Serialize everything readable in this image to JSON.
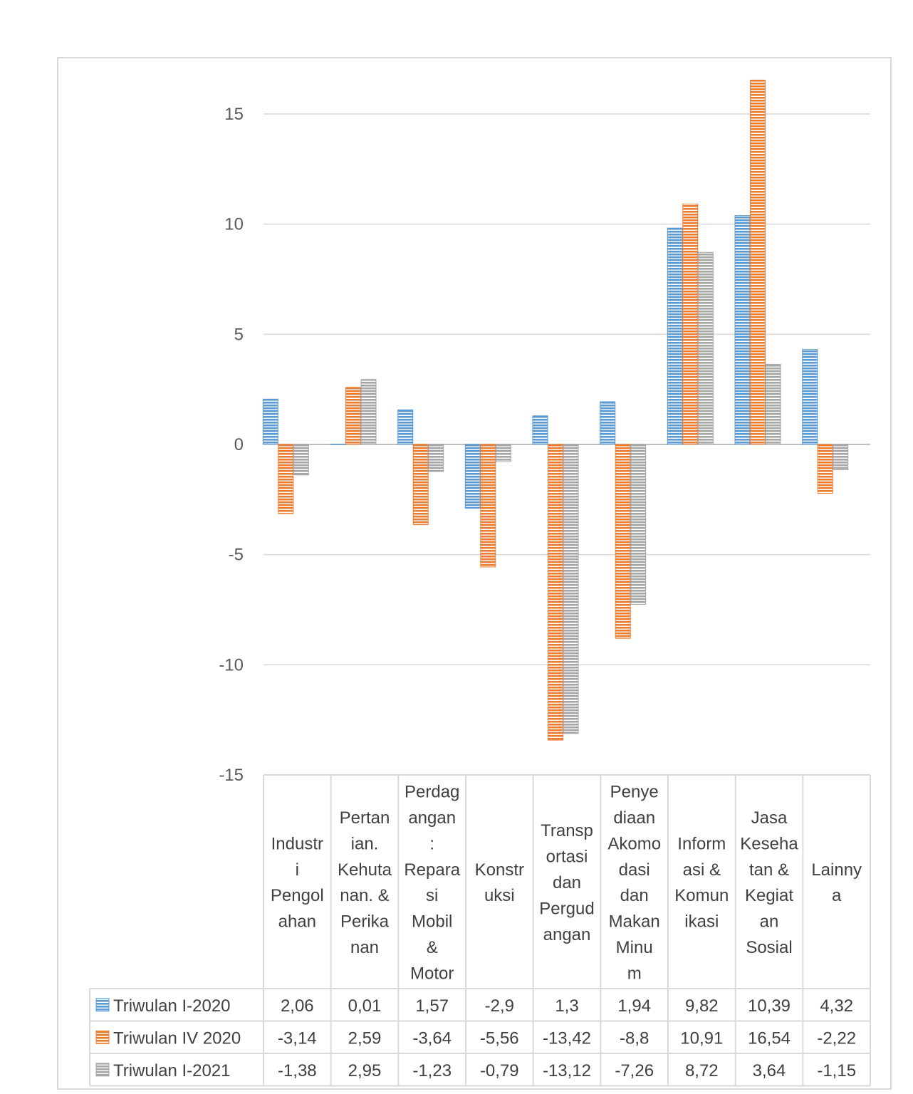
{
  "chart_data": {
    "type": "bar",
    "title": "",
    "xlabel": "",
    "ylabel": "",
    "ylim": [
      -15,
      15
    ],
    "yticks": [
      15,
      10,
      5,
      0,
      -5,
      -10,
      -15
    ],
    "ytick_labels": [
      "15",
      "10",
      "5",
      "0",
      "-5",
      "-10",
      "-15"
    ],
    "grid": true,
    "legend": "data-table",
    "categories": [
      [
        "Industr",
        "i",
        "Pengol",
        "ahan"
      ],
      [
        "Pertan",
        "ian.",
        "Kehuta",
        "nan. &",
        "Perika",
        "nan"
      ],
      [
        "Perdag",
        "angan",
        ":",
        "Repara",
        "si",
        "Mobil",
        "&",
        "Motor"
      ],
      [
        "Konstr",
        "uksi"
      ],
      [
        "Transp",
        "ortasi",
        "dan",
        "Pergud",
        "angan"
      ],
      [
        "Penye",
        "diaan",
        "Akomo",
        "dasi",
        "dan",
        "Makan",
        "Minu",
        "m"
      ],
      [
        "Inform",
        "asi &",
        "Komun",
        "ikasi"
      ],
      [
        "Jasa",
        "Keseha",
        "tan &",
        "Kegiat",
        "an",
        "Sosial"
      ],
      [
        "Lainny",
        "a"
      ]
    ],
    "series": [
      {
        "name": "Triwulan I-2020",
        "color": "#5b9bd5",
        "values": [
          2.06,
          0.01,
          1.57,
          -2.9,
          1.3,
          1.94,
          9.82,
          10.39,
          4.32
        ],
        "labels": [
          "2,06",
          "0,01",
          "1,57",
          "-2,9",
          "1,3",
          "1,94",
          "9,82",
          "10,39",
          "4,32"
        ]
      },
      {
        "name": "Triwulan IV 2020",
        "color": "#ed7d31",
        "values": [
          -3.14,
          2.59,
          -3.64,
          -5.56,
          -13.42,
          -8.8,
          10.91,
          16.54,
          -2.22
        ],
        "labels": [
          "-3,14",
          "2,59",
          "-3,64",
          "-5,56",
          "-13,42",
          "-8,8",
          "10,91",
          "16,54",
          "-2,22"
        ]
      },
      {
        "name": "Triwulan I-2021",
        "color": "#a5a5a5",
        "values": [
          -1.38,
          2.95,
          -1.23,
          -0.79,
          -13.12,
          -7.26,
          8.72,
          3.64,
          -1.15
        ],
        "labels": [
          "-1,38",
          "2,95",
          "-1,23",
          "-0,79",
          "-13,12",
          "-7,26",
          "8,72",
          "3,64",
          "-1,15"
        ]
      }
    ]
  }
}
